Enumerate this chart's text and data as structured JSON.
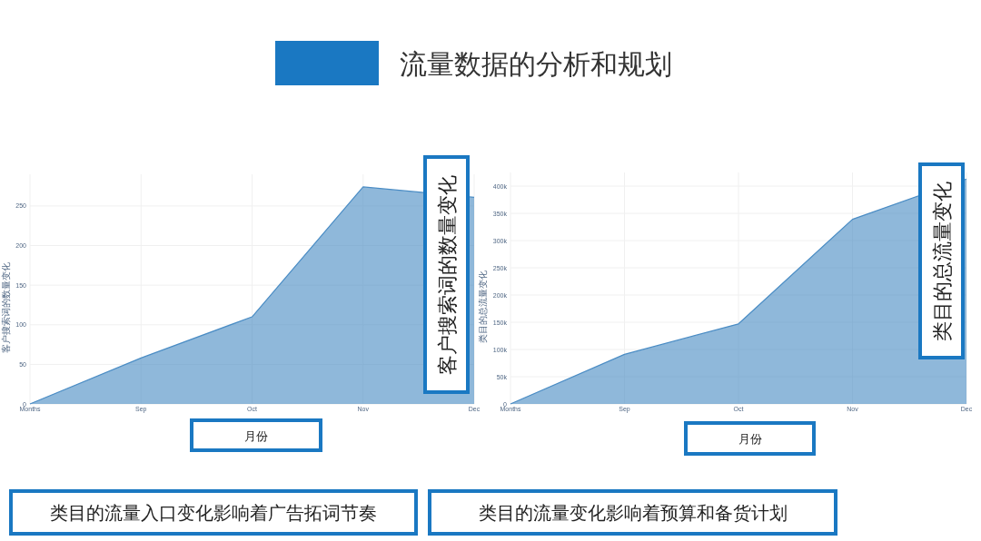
{
  "chart_data": [
    {
      "type": "area",
      "title": "流量数据的分析和规划",
      "categories": [
        "Months",
        "Sep",
        "Oct",
        "Nov",
        "Dec"
      ],
      "values": [
        0,
        58,
        110,
        274,
        261
      ],
      "color": "#4a8cc4",
      "ylabel": "客户搜索词的数量变化",
      "xlabel": "月份",
      "ylim": [
        0,
        290
      ],
      "yticks": [
        0,
        50,
        100,
        150,
        200,
        250
      ],
      "grid": true,
      "annotations": [
        "客户搜索词的数量变化",
        "类目的流量入口变化影响着广告拓词节奏"
      ]
    },
    {
      "type": "area",
      "categories": [
        "Months",
        "Sep",
        "Oct",
        "Nov",
        "Dec"
      ],
      "values": [
        0,
        91000,
        147000,
        339000,
        413000
      ],
      "color": "#4a8cc4",
      "ylabel": "类目的总流量变化",
      "xlabel": "月份",
      "ylim": [
        0,
        425000
      ],
      "yticks": [
        0,
        {
          "value": 50000,
          "label": "50k"
        },
        {
          "value": 100000,
          "label": "100k"
        },
        {
          "value": 150000,
          "label": "150k"
        },
        {
          "value": 200000,
          "label": "200k"
        },
        {
          "value": 250000,
          "label": "250k"
        },
        {
          "value": 300000,
          "label": "300k"
        },
        {
          "value": 350000,
          "label": "350k"
        },
        {
          "value": 400000,
          "label": "400k"
        }
      ],
      "grid": true,
      "annotations": [
        "类目的总流量变化",
        "类目的流量变化影响着预算和备货计划"
      ]
    }
  ]
}
